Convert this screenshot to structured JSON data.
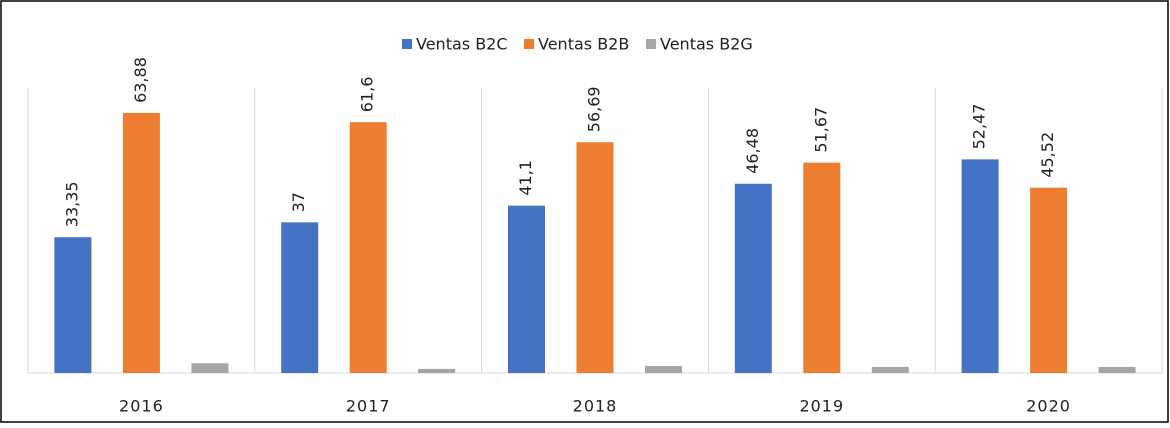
{
  "chart_data": {
    "type": "bar",
    "categories": [
      "2016",
      "2017",
      "2018",
      "2019",
      "2020"
    ],
    "series": [
      {
        "name": "Ventas B2C",
        "color": "#4472c4",
        "values": [
          33.35,
          37,
          41.1,
          46.48,
          52.47
        ],
        "value_labels": [
          "33,35",
          "37",
          "41,1",
          "46,48",
          "52,47"
        ]
      },
      {
        "name": "Ventas B2B",
        "color": "#ed7d31",
        "values": [
          63.88,
          61.6,
          56.69,
          51.67,
          45.52
        ],
        "value_labels": [
          "63,88",
          "61,6",
          "56,69",
          "51,67",
          "45,52"
        ]
      },
      {
        "name": "Ventas B2G",
        "color": "#a5a5a5",
        "values": [
          2.4,
          1,
          1.7,
          1.5,
          1.5
        ]
      }
    ],
    "ylim": [
      0,
      70
    ]
  }
}
